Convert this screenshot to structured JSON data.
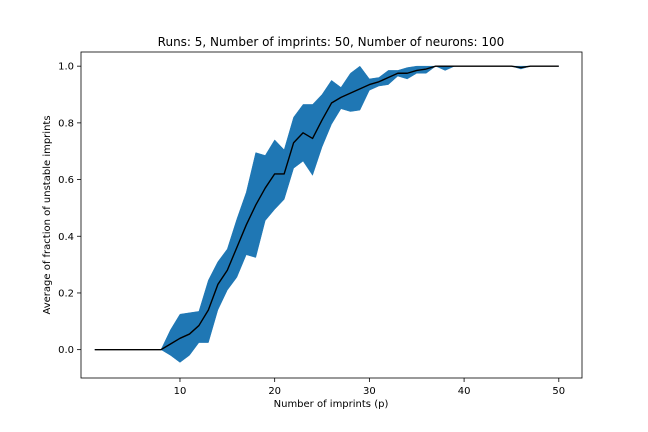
{
  "chart_data": {
    "type": "line",
    "title": "Runs: 5, Number of imprints: 50, Number of neurons: 100",
    "xlabel": "Number of imprints (p)",
    "ylabel": "Average of fraction of unstable imprints",
    "xlim": [
      -0.45,
      52.45
    ],
    "ylim": [
      -0.1,
      1.05
    ],
    "xticks": [
      10,
      20,
      30,
      40,
      50
    ],
    "yticks": [
      0.0,
      0.2,
      0.4,
      0.6,
      0.8,
      1.0
    ],
    "xtick_labels": [
      "10",
      "20",
      "30",
      "40",
      "50"
    ],
    "ytick_labels": [
      "0.0",
      "0.2",
      "0.4",
      "0.6",
      "0.8",
      "1.0"
    ],
    "grid": false,
    "band_color": "#1f77b4",
    "line_color": "#000000",
    "x": [
      1,
      2,
      3,
      4,
      5,
      6,
      7,
      8,
      9,
      10,
      11,
      12,
      13,
      14,
      15,
      16,
      17,
      18,
      19,
      20,
      21,
      22,
      23,
      24,
      25,
      26,
      27,
      28,
      29,
      30,
      31,
      32,
      33,
      34,
      35,
      36,
      37,
      38,
      39,
      40,
      41,
      42,
      43,
      44,
      45,
      46,
      47,
      48,
      49,
      50
    ],
    "series": [
      {
        "values": [
          0,
          0,
          0,
          0,
          0,
          0,
          0,
          0,
          0.02,
          0.04,
          0.055,
          0.085,
          0.14,
          0.23,
          0.28,
          0.36,
          0.44,
          0.51,
          0.57,
          0.62,
          0.62,
          0.73,
          0.765,
          0.745,
          0.81,
          0.87,
          0.89,
          0.905,
          0.92,
          0.935,
          0.945,
          0.96,
          0.975,
          0.975,
          0.985,
          0.99,
          1,
          1,
          1,
          1,
          1,
          1,
          1,
          1,
          1,
          0.995,
          1,
          1,
          1,
          1
        ],
        "lower": [
          0,
          0,
          0,
          0,
          0,
          0,
          0,
          0,
          -0.02,
          -0.045,
          -0.02,
          0.025,
          0.025,
          0.14,
          0.21,
          0.255,
          0.335,
          0.325,
          0.455,
          0.495,
          0.53,
          0.64,
          0.665,
          0.615,
          0.715,
          0.795,
          0.85,
          0.84,
          0.845,
          0.915,
          0.93,
          0.935,
          0.965,
          0.955,
          0.975,
          0.975,
          1,
          0.985,
          1,
          1,
          1,
          1,
          1,
          1,
          1,
          0.99,
          1,
          1,
          1,
          1
        ],
        "upper": [
          0,
          0,
          0,
          0,
          0,
          0,
          0,
          0,
          0.07,
          0.125,
          0.13,
          0.135,
          0.245,
          0.31,
          0.355,
          0.46,
          0.555,
          0.695,
          0.685,
          0.74,
          0.705,
          0.82,
          0.865,
          0.865,
          0.9,
          0.95,
          0.925,
          0.975,
          1.0,
          0.955,
          0.96,
          0.985,
          0.985,
          0.995,
          1,
          1,
          1,
          1,
          1,
          1,
          1,
          1,
          1,
          1,
          1,
          1,
          1,
          1,
          1,
          1
        ]
      }
    ]
  }
}
